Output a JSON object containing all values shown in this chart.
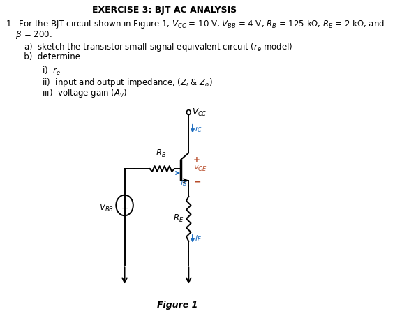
{
  "title": "EXERCISE 3: BJT AC ANALYSIS",
  "title_fontsize": 9,
  "background_color": "#ffffff",
  "text_color": "#000000",
  "body_fontsize": 8.5,
  "line1": "1.  For the BJT circuit shown in Figure 1, $V_{CC}$ = 10 V, $V_{BB}$ = 4 V, $R_B$ = 125 kΩ, $R_E$ = 2 kΩ, and",
  "line2": "    $\\beta$ = 200.",
  "line_a": "       a)  sketch the transistor small-signal equivalent circuit ($r_e$ model)",
  "line_b": "       b)  determine",
  "line_i": "              i)  $r_e$",
  "line_ii": "              ii)  input and output impedance, ($Z_i$ & $Z_o$)",
  "line_iii": "              iii)  voltage gain ($A_v$)",
  "figure_label": "Figure 1",
  "blue": "#1a6bbf",
  "red": "#b84c2a",
  "black": "#000000",
  "circuit": {
    "vcc_label": "$V_{CC}$",
    "vbb_label": "$V_{BB}$",
    "rb_label": "$R_B$",
    "re_label": "$R_E$",
    "ic_label": "$i_C$",
    "ib_label": "$i_B$",
    "ie_label": "$i_E$",
    "vce_label": "$v_{CE}$",
    "plus": "+",
    "minus": "−"
  }
}
